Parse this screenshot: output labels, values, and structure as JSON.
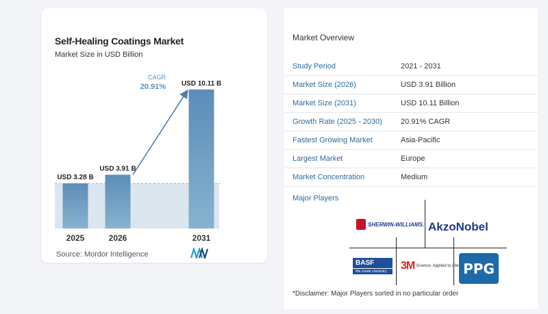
{
  "chart": {
    "title": "Self-Healing Coatings Market",
    "subtitle": "Market Size in USD Billion",
    "source": "Source:  Mordor Intelligence",
    "cagr_label": "CAGR",
    "cagr_value": "20.91%"
  },
  "chart_data": {
    "type": "bar",
    "categories": [
      "2025",
      "2026",
      "2031"
    ],
    "values": [
      3.28,
      3.91,
      10.11
    ],
    "data_labels": [
      "USD 3.28 B",
      "USD 3.91 B",
      "USD 10.11 B"
    ],
    "title": "Self-Healing Coatings Market",
    "subtitle": "Market Size in USD Billion",
    "xlabel": "",
    "ylabel": "",
    "annotations": [
      "CAGR",
      "20.91%"
    ],
    "grid": false,
    "colors": {
      "bar_top": "#5c8db8",
      "bar_bottom": "#86b3cf",
      "band": "#dbe6ef",
      "arrow": "#4f7fa8",
      "cagr_text": "#5a8fbd"
    }
  },
  "overview": {
    "title": "Market Overview",
    "rows": [
      {
        "label": "Study Period",
        "value": "2021 - 2031"
      },
      {
        "label": "Market Size (2026)",
        "value": "USD 3.91 Billion"
      },
      {
        "label": "Market Size (2031)",
        "value": "USD 10.11 Billion"
      },
      {
        "label": "Growth Rate (2025 - 2030)",
        "value": "20.91% CAGR"
      },
      {
        "label": "Fastest Growing Market",
        "value": "Asia-Pacific"
      },
      {
        "label": "Largest Market",
        "value": "Europe"
      },
      {
        "label": "Market Concentration",
        "value": "Medium"
      }
    ]
  },
  "players": {
    "title": "Major Players",
    "logos": {
      "sherwin": "SHERWIN-WILLIAMS.",
      "akzo": "AkzoNobel",
      "basf_main": "BASF",
      "basf_sub": "We create chemistry",
      "mmm_mark": "3M",
      "mmm_tag": "Science. Applied to Life.™",
      "ppg": "PPG"
    }
  },
  "disclaimer": "*Disclaimer: Major Players sorted in no particular order"
}
